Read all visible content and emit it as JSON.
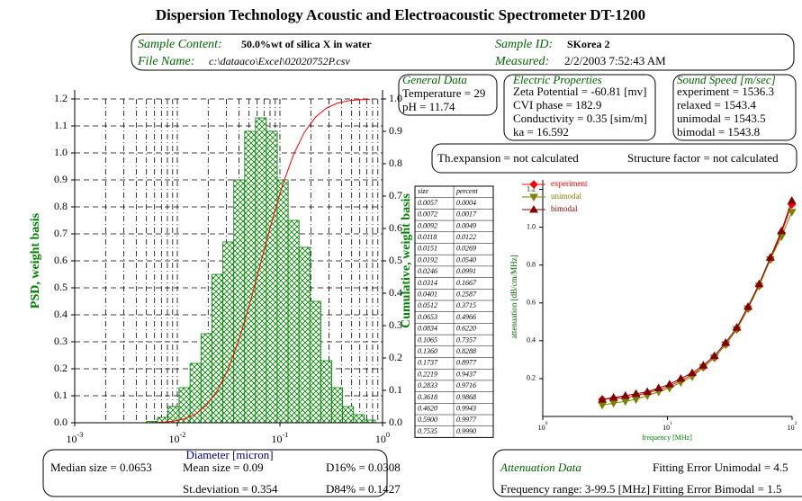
{
  "header": {
    "title": "Dispersion Technology Acoustic and Electroacoustic Spectrometer DT-1200"
  },
  "sample": {
    "content_label": "Sample Content:",
    "content": "50.0%wt of silica X in water",
    "id_label": "Sample ID:",
    "id": "SKorea 2",
    "file_label": "File Name:",
    "file": "c:\\dataaco\\Excel\\02020752P.csv",
    "measured_label": "Measured:",
    "measured": "2/2/2003 7:52:43 AM"
  },
  "general": {
    "heading": "General Data",
    "lines": [
      "Temperature =  29",
      "pH = 11.74"
    ]
  },
  "electric": {
    "heading": "Electric Properties",
    "lines": [
      "Zeta Potential = -60.81 [mv]",
      "CVI phase = 182.9",
      "Conductivity = 0.35 [sim/m]",
      "ka = 16.592"
    ]
  },
  "sound": {
    "heading": "Sound Speed [m/sec]",
    "lines": [
      "experiment = 1536.3",
      "relaxed = 1543.4",
      "unimodal = 1543.5",
      "bimodal = 1543.8"
    ]
  },
  "thermal": {
    "expansion": "Th.expansion = not calculated",
    "structure": "Structure factor = not calculated"
  },
  "table": {
    "header": [
      "size",
      "percent"
    ],
    "rows": [
      [
        "0.0057",
        "0.0004"
      ],
      [
        "0.0072",
        "0.0017"
      ],
      [
        "0.0092",
        "0.0049"
      ],
      [
        "0.0118",
        "0.0122"
      ],
      [
        "0.0151",
        "0.0269"
      ],
      [
        "0.0192",
        "0.0540"
      ],
      [
        "0.0246",
        "0.0991"
      ],
      [
        "0.0314",
        "0.1667"
      ],
      [
        "0.0401",
        "0.2587"
      ],
      [
        "0.0512",
        "0.3715"
      ],
      [
        "0.0653",
        "0.4966"
      ],
      [
        "0.0834",
        "0.6220"
      ],
      [
        "0.1065",
        "0.7357"
      ],
      [
        "0.1360",
        "0.8288"
      ],
      [
        "0.1737",
        "0.8977"
      ],
      [
        "0.2219",
        "0.9437"
      ],
      [
        "0.2833",
        "0.9716"
      ],
      [
        "0.3618",
        "0.9868"
      ],
      [
        "0.4620",
        "0.9943"
      ],
      [
        "0.5900",
        "0.9977"
      ],
      [
        "0.7535",
        "0.9990"
      ]
    ]
  },
  "summary": {
    "median": "Median size = 0.0653",
    "mean": "Mean size = 0.09",
    "d16": "D16% = 0.0308",
    "std": "St.deviation = 0.354",
    "d84": "D84% = 0.1427"
  },
  "attenuation_info": {
    "heading": "Attenuation Data",
    "fit_uni": "Fitting Error Unimodal = 4.5",
    "range": "Frequency range: 3-99.5 [MHz]",
    "fit_bi": "Fitting Error Bimodal = 1.5"
  },
  "chart_data": [
    {
      "type": "histogram",
      "x_label": "Diameter [micron]",
      "y_label": "PSD, weight basis",
      "y2_label": "Cumulative, weight basis",
      "bins": [
        0.005,
        0.0064,
        0.0081,
        0.0104,
        0.0133,
        0.017,
        0.0217,
        0.0278,
        0.0355,
        0.0453,
        0.0578,
        0.0738,
        0.0942,
        0.1203,
        0.1536,
        0.1962,
        0.2505,
        0.3199,
        0.4085,
        0.5217,
        0.6662,
        0.8507
      ],
      "values": [
        0.005,
        0.02,
        0.06,
        0.13,
        0.22,
        0.33,
        0.55,
        0.67,
        0.9,
        1.08,
        1.13,
        1.08,
        0.9,
        0.75,
        0.65,
        0.45,
        0.23,
        0.13,
        0.06,
        0.03,
        0.01
      ],
      "color": "#008000",
      "xscale": "log",
      "xlim": [
        0.001,
        1
      ],
      "xticks": [
        {
          "value": 0.001,
          "label": "10",
          "exponent": "-3"
        },
        {
          "value": 0.01,
          "label": "10",
          "exponent": "-2"
        },
        {
          "value": 0.1,
          "label": "10",
          "exponent": "-1"
        },
        {
          "value": 1,
          "label": "10",
          "exponent": "0"
        }
      ],
      "xminor": [
        0.002,
        0.003,
        0.004,
        0.005,
        0.006,
        0.007,
        0.008,
        0.009,
        0.02,
        0.03,
        0.04,
        0.05,
        0.06,
        0.07,
        0.08,
        0.09,
        0.2,
        0.3,
        0.4,
        0.5,
        0.6,
        0.7,
        0.8,
        0.9
      ],
      "ylim": [
        0,
        1.2
      ],
      "yticks": [
        {
          "value": 0,
          "label": "0.0"
        },
        0.1,
        0.2,
        0.3,
        0.4,
        0.5,
        0.6,
        0.7,
        0.8,
        0.9,
        {
          "value": 1,
          "label": "1.0"
        },
        1.1,
        1.2
      ],
      "y2lim": [
        0,
        1
      ],
      "y2ticks": [
        {
          "value": 0,
          "label": "0.0"
        },
        0.1,
        0.2,
        0.3,
        0.4,
        0.5,
        0.6,
        0.7,
        0.8,
        0.9,
        {
          "value": 1,
          "label": "1.0"
        }
      ],
      "grid": true,
      "line": {
        "axis": "y2",
        "color": "#ff0000",
        "x": [
          0.0057,
          0.0072,
          0.0092,
          0.0118,
          0.0151,
          0.0192,
          0.0246,
          0.0314,
          0.0401,
          0.0512,
          0.0653,
          0.0834,
          0.1065,
          0.136,
          0.1737,
          0.2219,
          0.2833,
          0.3618,
          0.462,
          0.59,
          0.7535
        ],
        "values": [
          0.0004,
          0.0017,
          0.0049,
          0.0122,
          0.0269,
          0.054,
          0.0991,
          0.1667,
          0.2587,
          0.3715,
          0.4966,
          0.622,
          0.7357,
          0.8288,
          0.8977,
          0.9437,
          0.9716,
          0.9868,
          0.9943,
          0.9977,
          0.999
        ]
      }
    },
    {
      "type": "line",
      "x_label": "frequency [MHz]",
      "y_label": "attenuation [dB/cm/MHz]",
      "xscale": "log",
      "xlim": [
        1,
        100
      ],
      "xticks": [
        {
          "value": 1,
          "label": "10",
          "exponent": "0"
        },
        {
          "value": 10,
          "label": "10",
          "exponent": "1"
        },
        {
          "value": 100,
          "label": "10",
          "exponent": "2"
        }
      ],
      "ylim": [
        0,
        1.25
      ],
      "yticks": [
        0.2,
        0.4,
        0.6,
        0.8,
        {
          "value": 1,
          "label": "1.0"
        },
        1.2
      ],
      "legend": "top-left",
      "x": [
        3,
        3.7,
        4.6,
        5.6,
        6.9,
        8.5,
        10.4,
        12.8,
        15.8,
        19.4,
        23.8,
        29.3,
        36.0,
        44.3,
        54.4,
        66.9,
        82.2,
        99.5
      ],
      "series": [
        {
          "name": "experiment",
          "color": "#ff0000",
          "marker": "diamond",
          "values": [
            0.09,
            0.095,
            0.1,
            0.11,
            0.125,
            0.14,
            0.16,
            0.19,
            0.22,
            0.26,
            0.31,
            0.38,
            0.46,
            0.57,
            0.69,
            0.83,
            0.97,
            1.12
          ]
        },
        {
          "name": "unimodal",
          "color": "#808000",
          "marker": "triangle-down",
          "values": [
            0.06,
            0.07,
            0.08,
            0.09,
            0.11,
            0.13,
            0.15,
            0.18,
            0.21,
            0.26,
            0.31,
            0.38,
            0.46,
            0.57,
            0.69,
            0.83,
            0.95,
            1.08
          ]
        },
        {
          "name": "bimodal",
          "color": "#800000",
          "marker": "triangle-up",
          "values": [
            0.09,
            0.1,
            0.11,
            0.12,
            0.13,
            0.15,
            0.17,
            0.2,
            0.23,
            0.27,
            0.32,
            0.39,
            0.47,
            0.58,
            0.7,
            0.84,
            0.98,
            1.14
          ]
        }
      ]
    }
  ]
}
